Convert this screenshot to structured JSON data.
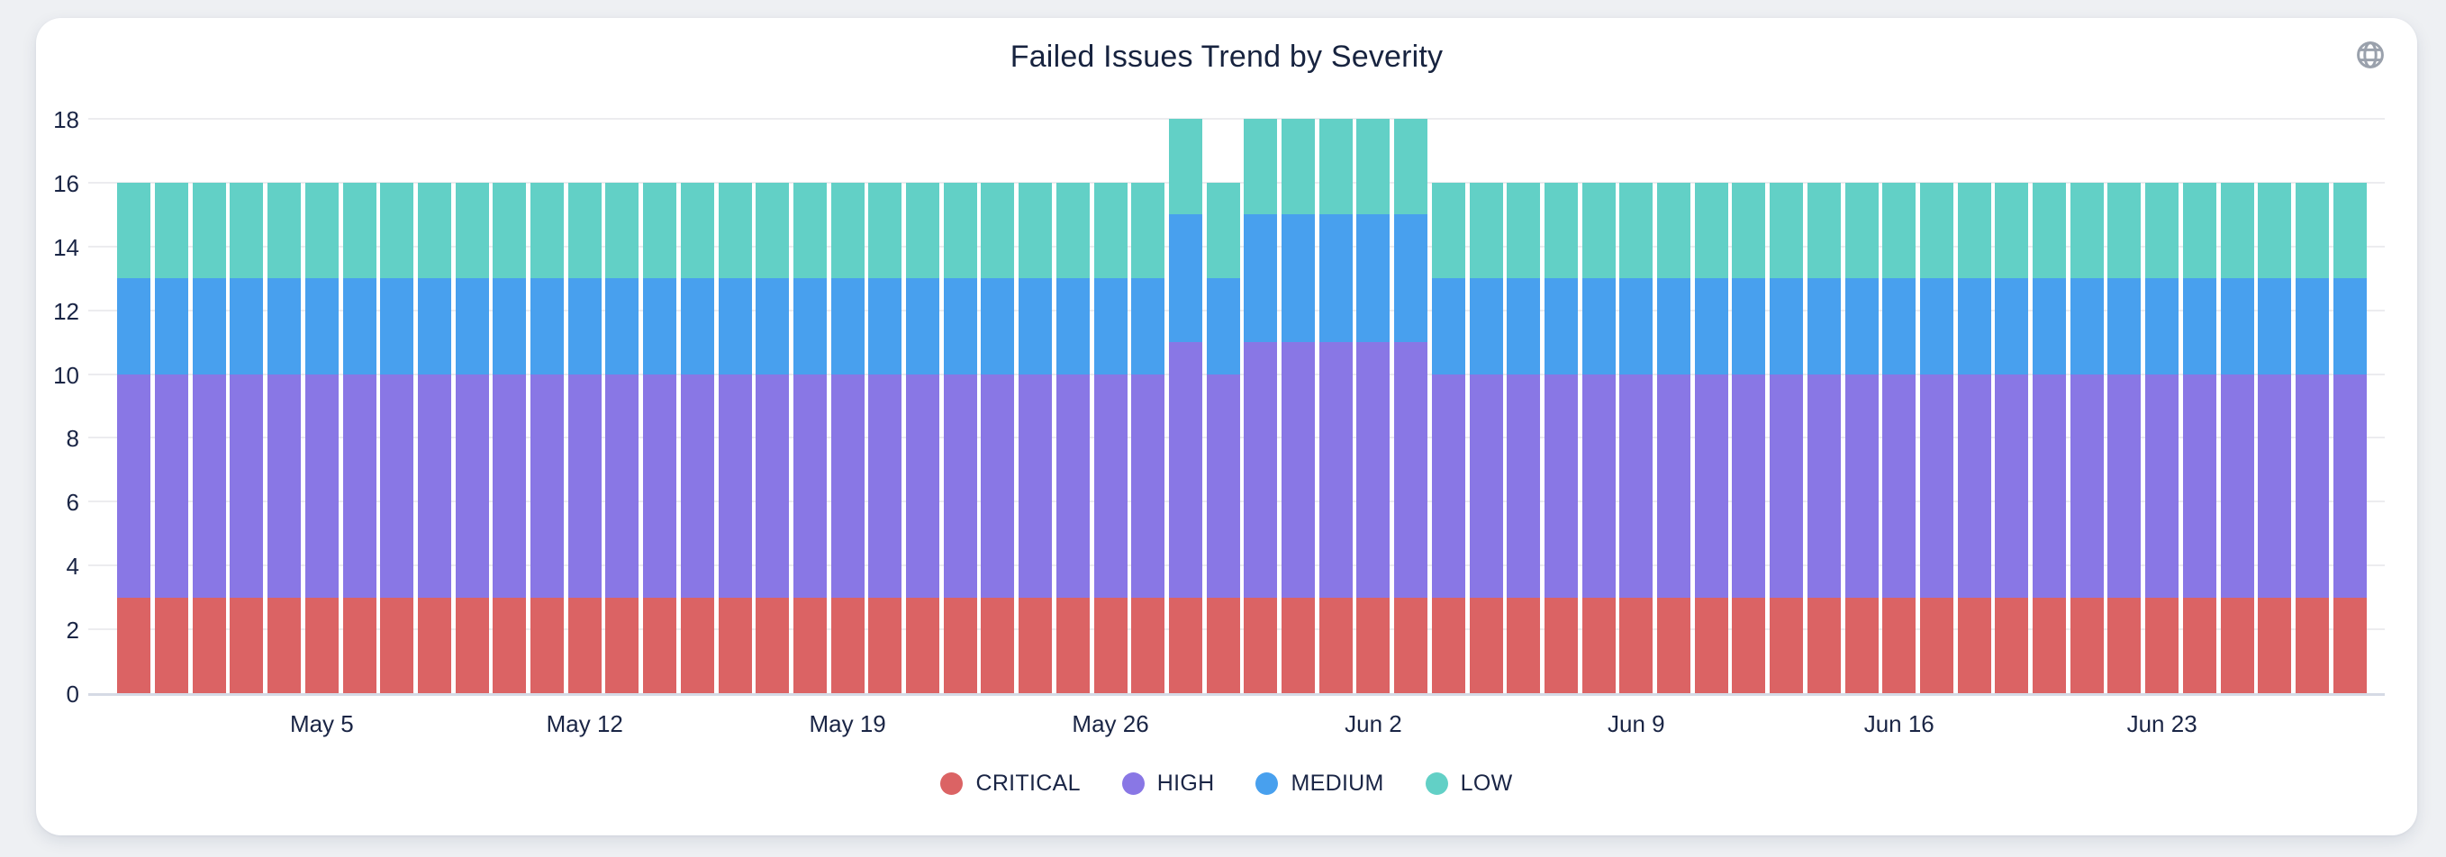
{
  "page": {
    "background": "#eef0f3",
    "card_background": "#ffffff"
  },
  "header": {
    "title": "Failed Issues Trend by Severity"
  },
  "icons": {
    "top_right": "globe-icon"
  },
  "colors": {
    "critical": "#db6364",
    "high": "#8977e5",
    "medium": "#48a0ee",
    "low": "#62d0c6",
    "text": "#1a2545",
    "gridline": "#ececef",
    "axis_line": "#d5dae5",
    "globe_icon": "#9aa1ac"
  },
  "chart_data": {
    "type": "bar",
    "stacked": true,
    "title": "Failed Issues Trend by Severity",
    "xlabel": "",
    "ylabel": "",
    "ylim": [
      0,
      18
    ],
    "yticks": [
      0,
      2,
      4,
      6,
      8,
      10,
      12,
      14,
      16,
      18
    ],
    "grid": true,
    "legend_position": "bottom",
    "x": [
      "Apr 30",
      "May 1",
      "May 2",
      "May 3",
      "May 4",
      "May 5",
      "May 6",
      "May 7",
      "May 8",
      "May 9",
      "May 10",
      "May 11",
      "May 12",
      "May 13",
      "May 14",
      "May 15",
      "May 16",
      "May 17",
      "May 18",
      "May 19",
      "May 20",
      "May 21",
      "May 22",
      "May 23",
      "May 24",
      "May 25",
      "May 26",
      "May 27",
      "May 28",
      "May 29",
      "May 30",
      "May 31",
      "Jun 1",
      "Jun 2",
      "Jun 3",
      "Jun 4",
      "Jun 5",
      "Jun 6",
      "Jun 7",
      "Jun 8",
      "Jun 9",
      "Jun 10",
      "Jun 11",
      "Jun 12",
      "Jun 13",
      "Jun 14",
      "Jun 15",
      "Jun 16",
      "Jun 17",
      "Jun 18",
      "Jun 19",
      "Jun 20",
      "Jun 21",
      "Jun 22",
      "Jun 23",
      "Jun 24",
      "Jun 25",
      "Jun 26",
      "Jun 27",
      "Jun 28"
    ],
    "x_ticks": [
      {
        "index": 5,
        "label": "May 5"
      },
      {
        "index": 12,
        "label": "May 12"
      },
      {
        "index": 19,
        "label": "May 19"
      },
      {
        "index": 26,
        "label": "May 26"
      },
      {
        "index": 33,
        "label": "Jun 2"
      },
      {
        "index": 40,
        "label": "Jun 9"
      },
      {
        "index": 47,
        "label": "Jun 16"
      },
      {
        "index": 54,
        "label": "Jun 23"
      }
    ],
    "series": [
      {
        "name": "CRITICAL",
        "color": "#db6364",
        "values": [
          3,
          3,
          3,
          3,
          3,
          3,
          3,
          3,
          3,
          3,
          3,
          3,
          3,
          3,
          3,
          3,
          3,
          3,
          3,
          3,
          3,
          3,
          3,
          3,
          3,
          3,
          3,
          3,
          3,
          3,
          3,
          3,
          3,
          3,
          3,
          3,
          3,
          3,
          3,
          3,
          3,
          3,
          3,
          3,
          3,
          3,
          3,
          3,
          3,
          3,
          3,
          3,
          3,
          3,
          3,
          3,
          3,
          3,
          3,
          3
        ]
      },
      {
        "name": "HIGH",
        "color": "#8977e5",
        "values": [
          7,
          7,
          7,
          7,
          7,
          7,
          7,
          7,
          7,
          7,
          7,
          7,
          7,
          7,
          7,
          7,
          7,
          7,
          7,
          7,
          7,
          7,
          7,
          7,
          7,
          7,
          7,
          7,
          8,
          7,
          8,
          8,
          8,
          8,
          8,
          7,
          7,
          7,
          7,
          7,
          7,
          7,
          7,
          7,
          7,
          7,
          7,
          7,
          7,
          7,
          7,
          7,
          7,
          7,
          7,
          7,
          7,
          7,
          7,
          7
        ]
      },
      {
        "name": "MEDIUM",
        "color": "#48a0ee",
        "values": [
          3,
          3,
          3,
          3,
          3,
          3,
          3,
          3,
          3,
          3,
          3,
          3,
          3,
          3,
          3,
          3,
          3,
          3,
          3,
          3,
          3,
          3,
          3,
          3,
          3,
          3,
          3,
          3,
          4,
          3,
          4,
          4,
          4,
          4,
          4,
          3,
          3,
          3,
          3,
          3,
          3,
          3,
          3,
          3,
          3,
          3,
          3,
          3,
          3,
          3,
          3,
          3,
          3,
          3,
          3,
          3,
          3,
          3,
          3,
          3
        ]
      },
      {
        "name": "LOW",
        "color": "#62d0c6",
        "values": [
          3,
          3,
          3,
          3,
          3,
          3,
          3,
          3,
          3,
          3,
          3,
          3,
          3,
          3,
          3,
          3,
          3,
          3,
          3,
          3,
          3,
          3,
          3,
          3,
          3,
          3,
          3,
          3,
          3,
          3,
          3,
          3,
          3,
          3,
          3,
          3,
          3,
          3,
          3,
          3,
          3,
          3,
          3,
          3,
          3,
          3,
          3,
          3,
          3,
          3,
          3,
          3,
          3,
          3,
          3,
          3,
          3,
          3,
          3,
          3
        ]
      }
    ]
  }
}
